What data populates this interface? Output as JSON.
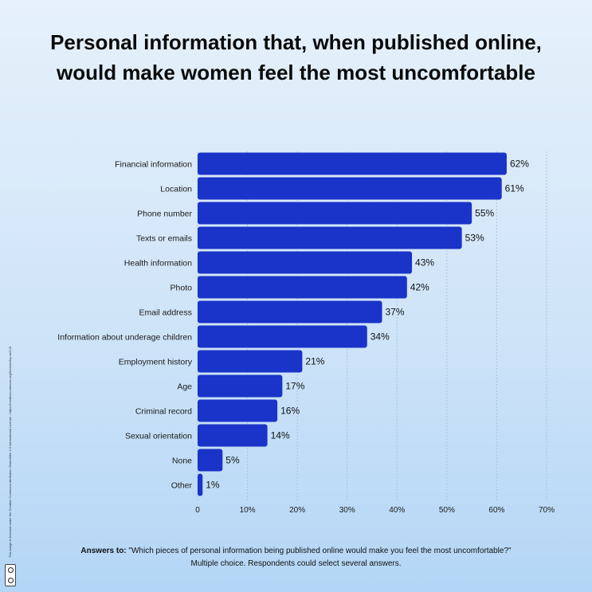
{
  "title": "Personal information that, when published online, would make women feel the most uncomfortable",
  "footer": {
    "lead": "Answers to:",
    "question": "\"Which pieces of personal information being published online would make you feel the most uncomfortable?\"",
    "note": "Multiple choice. Respondents could select several answers."
  },
  "license_text": "This image is licensed under the Creative Commons Attribution-ShareAlike 4.0 International License - https://creativecommons.org/licenses/by-sa/4.0/",
  "colors": {
    "bar": "#1a33c8",
    "grid": "#9fbfe0"
  },
  "chart_data": {
    "type": "bar",
    "orientation": "horizontal",
    "categories": [
      "Financial information",
      "Location",
      "Phone number",
      "Texts or emails",
      "Health information",
      "Photo",
      "Email address",
      "Information about underage children",
      "Employment history",
      "Age",
      "Criminal record",
      "Sexual orientation",
      "None",
      "Other"
    ],
    "values": [
      62,
      61,
      55,
      53,
      43,
      42,
      37,
      34,
      21,
      17,
      16,
      14,
      5,
      1
    ],
    "value_labels": [
      "62%",
      "61%",
      "55%",
      "53%",
      "43%",
      "42%",
      "37%",
      "34%",
      "21%",
      "17%",
      "16%",
      "14%",
      "5%",
      "1%"
    ],
    "xlim": [
      0,
      70
    ],
    "xticks": [
      0,
      10,
      20,
      30,
      40,
      50,
      60,
      70
    ],
    "xtick_labels": [
      "0",
      "10%",
      "20%",
      "30%",
      "40%",
      "50%",
      "60%",
      "70%"
    ],
    "grid": "vertical"
  }
}
